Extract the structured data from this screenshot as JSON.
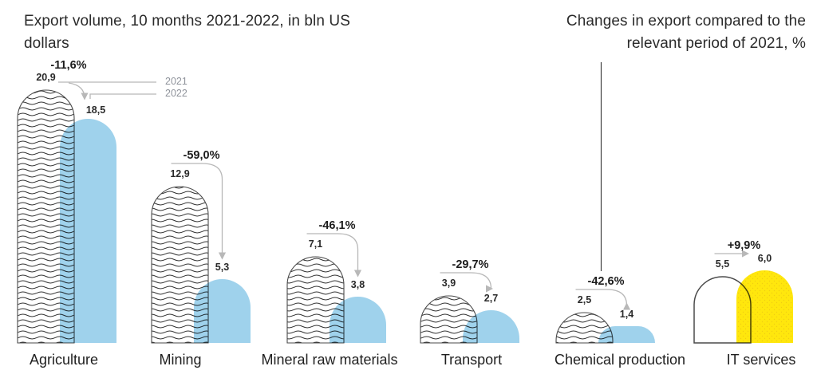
{
  "title_left": "Export volume, 10 months 2021-2022, in bln US dollars",
  "title_right": "Changes in export compared to the relevant period of 2021, %",
  "colors": {
    "bar_2022_blue": "#9fd2ec",
    "bar_2022_yellow": "#ffe70d",
    "dot_on_yellow": "#f0cd12",
    "wave_line": "#333333",
    "bar_outline": "#4a4a4a",
    "arrow_gray": "#b8b8b8",
    "divider": "#3f3f3f",
    "text_dark": "#1f1f1f",
    "legend_text": "#8f939b"
  },
  "chart_data": {
    "type": "bar",
    "title": "Export volume, 10 months 2021-2022, in bln US dollars",
    "right_title": "Changes in export compared to the relevant period of 2021, %",
    "categories": [
      "Agriculture",
      "Mining",
      "Mineral raw materials",
      "Transport",
      "Chemical production",
      "IT services"
    ],
    "series": [
      {
        "name": "2021",
        "values": [
          20.9,
          12.9,
          7.1,
          3.9,
          2.5,
          5.5
        ]
      },
      {
        "name": "2022",
        "values": [
          18.5,
          5.3,
          3.8,
          2.7,
          1.4,
          6.0
        ]
      }
    ],
    "value_labels_2021": [
      "20,9",
      "12,9",
      "7,1",
      "3,9",
      "2,5",
      "5,5"
    ],
    "value_labels_2022": [
      "18,5",
      "5,3",
      "3,8",
      "2,7",
      "1,4",
      "6,0"
    ],
    "change_labels": [
      "-11,6%",
      "-59,0%",
      "-46,1%",
      "-29,7%",
      "-42,6%",
      "+9,9%"
    ],
    "legend": [
      "2021",
      "2022"
    ],
    "legend_position": "top-left-inline",
    "grid": false,
    "axis": "none",
    "unit": "bln US dollars",
    "bar_styles": {
      "2021": "white with dark wavy-line pattern and outline (plain white outline for IT services)",
      "2022": "solid light blue (yellow with dot texture for IT services)"
    }
  }
}
